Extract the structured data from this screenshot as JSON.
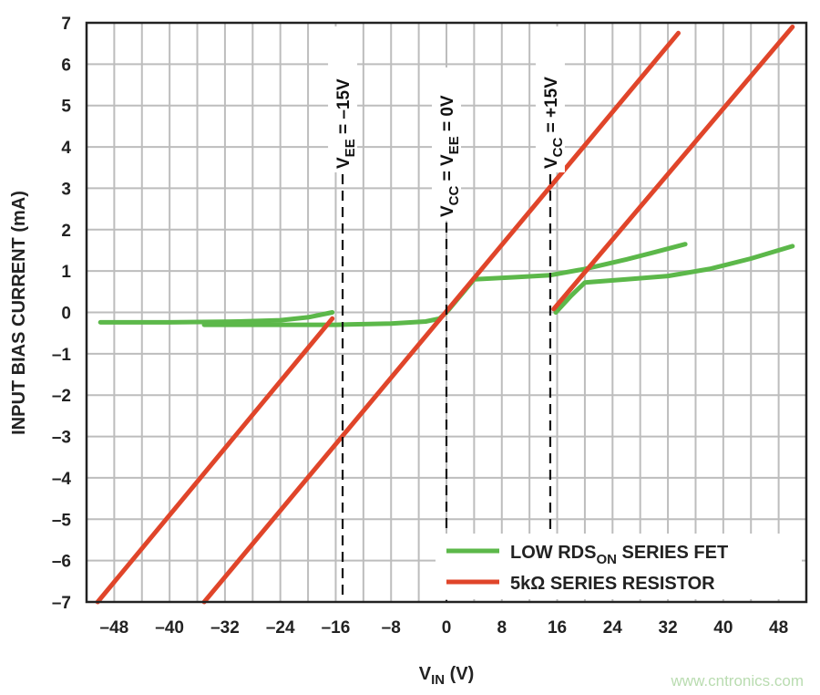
{
  "chart_data": {
    "type": "line",
    "title": "",
    "xlabel": {
      "main": "V",
      "sub": "IN",
      "rest": " (V)"
    },
    "ylabel": "INPUT BIAS CURRENT (mA)",
    "xlim": [
      -52,
      52
    ],
    "ylim": [
      -7,
      7
    ],
    "grid": true,
    "x_grid_step": 4,
    "y_grid_step": 1,
    "xticks": [
      -48,
      -40,
      -32,
      -24,
      -16,
      -8,
      0,
      8,
      16,
      24,
      32,
      40,
      48
    ],
    "xtick_labels": [
      "–48",
      "–40",
      "–32",
      "–24",
      "–16",
      "–8",
      "0",
      "8",
      "16",
      "24",
      "32",
      "40",
      "48"
    ],
    "yticks": [
      7,
      6,
      5,
      4,
      3,
      2,
      1,
      0,
      -1,
      -2,
      -3,
      -4,
      -5,
      -6,
      -7
    ],
    "ytick_labels": [
      "7",
      "6",
      "5",
      "4",
      "3",
      "2",
      "1",
      "0",
      "–1",
      "–2",
      "–3",
      "–4",
      "–5",
      "–6",
      "–7"
    ],
    "legend_position": "bottom-right",
    "legend": [
      {
        "main": "LOW RDS",
        "sub": "ON",
        "rest": " SERIES FET",
        "color": "#5cb84a"
      },
      {
        "main": "5kΩ SERIES RESISTOR",
        "sub": "",
        "rest": "",
        "color": "#e0452a"
      }
    ],
    "series": [
      {
        "legend": 0,
        "color": "#5cb84a",
        "points": [
          [
            -50,
            -0.24
          ],
          [
            -40,
            -0.24
          ],
          [
            -30,
            -0.22
          ],
          [
            -24,
            -0.19
          ],
          [
            -20,
            -0.12
          ],
          [
            -16.5,
            0
          ]
        ]
      },
      {
        "legend": 0,
        "color": "#5cb84a",
        "points": [
          [
            -35,
            -0.3
          ],
          [
            -25,
            -0.3
          ],
          [
            -16,
            -0.3
          ],
          [
            -8,
            -0.27
          ],
          [
            -3,
            -0.22
          ],
          [
            -1,
            -0.15
          ],
          [
            0,
            0
          ],
          [
            2,
            0.4
          ],
          [
            4,
            0.8
          ],
          [
            10,
            0.85
          ],
          [
            15,
            0.9
          ],
          [
            20,
            1.05
          ],
          [
            26,
            1.28
          ],
          [
            30,
            1.45
          ],
          [
            34.5,
            1.65
          ]
        ]
      },
      {
        "legend": 0,
        "color": "#5cb84a",
        "points": [
          [
            15.8,
            0
          ],
          [
            18,
            0.4
          ],
          [
            20,
            0.72
          ],
          [
            26,
            0.8
          ],
          [
            32,
            0.88
          ],
          [
            38,
            1.05
          ],
          [
            44,
            1.3
          ],
          [
            50,
            1.6
          ]
        ]
      },
      {
        "legend": 1,
        "color": "#e0452a",
        "points": [
          [
            -50.4,
            -7
          ],
          [
            -16.5,
            -0.15
          ]
        ]
      },
      {
        "legend": 1,
        "color": "#e0452a",
        "points": [
          [
            -35,
            -7
          ],
          [
            33.5,
            6.75
          ]
        ]
      },
      {
        "legend": 1,
        "color": "#e0452a",
        "points": [
          [
            15.5,
            0.08
          ],
          [
            50,
            6.9
          ]
        ]
      }
    ],
    "annotations": [
      {
        "x": -15,
        "parts": [
          {
            "t": "V"
          },
          {
            "s": "EE"
          },
          {
            "t": " = –15V"
          }
        ]
      },
      {
        "x": 0,
        "parts": [
          {
            "t": "V"
          },
          {
            "s": "CC"
          },
          {
            "t": " = V"
          },
          {
            "s": "EE"
          },
          {
            "t": " = 0V"
          }
        ]
      },
      {
        "x": 15,
        "parts": [
          {
            "t": "V"
          },
          {
            "s": "CC"
          },
          {
            "t": " = +15V"
          }
        ]
      }
    ]
  },
  "watermark": "www.cntronics.com"
}
